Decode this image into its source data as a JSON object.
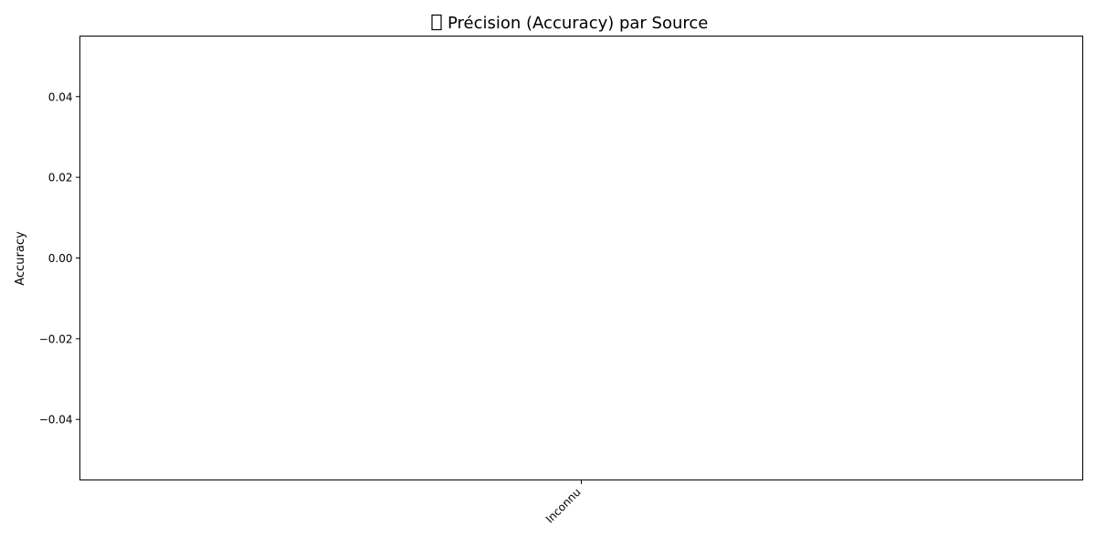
{
  "chart_data": {
    "type": "bar",
    "title": "Précision (Accuracy) par Source",
    "title_icon_glyph": "□",
    "title_icon_name": "missing-glyph-icon",
    "xlabel": "",
    "ylabel": "Accuracy",
    "categories": [
      "Inconnu"
    ],
    "values": [
      0
    ],
    "ylim": [
      -0.055,
      0.055
    ],
    "yticks": [
      -0.04,
      -0.02,
      0.0,
      0.02,
      0.04
    ],
    "ytick_labels": [
      "−0.04",
      "−0.02",
      "0.00",
      "0.02",
      "0.04"
    ],
    "grid": false,
    "legend": "none",
    "colors": {
      "axis": "#000000",
      "background": "#ffffff"
    }
  }
}
